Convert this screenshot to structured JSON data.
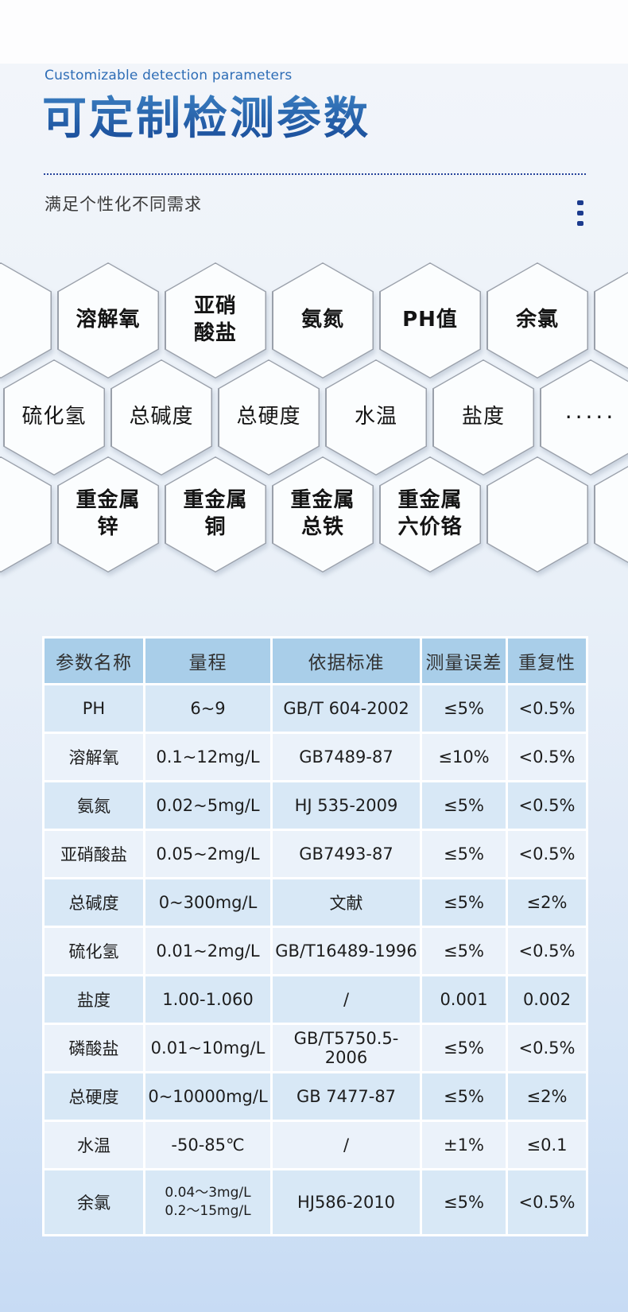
{
  "header": {
    "eyebrow": "Customizable detection parameters",
    "title": "可定制检测参数",
    "subtitle": "满足个性化不同需求",
    "kebab_icon": "vertical-ellipsis-ornament"
  },
  "colors": {
    "accent_blue": "#2a6ab3",
    "title_gradient_start": "#3d82c3",
    "title_gradient_end": "#1b4f9c",
    "dotted_rule_navy": "#26439a",
    "table_header_bg": "#a9cee9",
    "row_tint_blue": "#d8e8f6",
    "row_tint_light": "#ebf2fa",
    "hex_border_gray": "#9aa0aa",
    "hex_fill": "#fbfdfe"
  },
  "hexagons": {
    "rows": [
      {
        "weight": "bold",
        "offset": false,
        "labels": [
          "",
          "溶解氧",
          "亚硝\n酸盐",
          "氨氮",
          "PH值",
          "余氯",
          ""
        ]
      },
      {
        "weight": "regular",
        "offset": true,
        "labels": [
          "硫化氢",
          "总碱度",
          "总硬度",
          "水温",
          "盐度",
          "·····"
        ]
      },
      {
        "weight": "bold",
        "offset": false,
        "labels": [
          "",
          "重金属\n锌",
          "重金属\n铜",
          "重金属\n总铁",
          "重金属\n六价铬",
          "",
          ""
        ]
      }
    ]
  },
  "table": {
    "columns": [
      "参数名称",
      "量程",
      "依据标准",
      "测量误差",
      "重复性"
    ],
    "rows": [
      [
        "PH",
        "6~9",
        "GB/T 604-2002",
        "≤5%",
        "<0.5%"
      ],
      [
        "溶解氧",
        "0.1~12mg/L",
        "GB7489-87",
        "≤10%",
        "<0.5%"
      ],
      [
        "氨氮",
        "0.02~5mg/L",
        "HJ 535-2009",
        "≤5%",
        "<0.5%"
      ],
      [
        "亚硝酸盐",
        "0.05~2mg/L",
        "GB7493-87",
        "≤5%",
        "<0.5%"
      ],
      [
        "总碱度",
        "0~300mg/L",
        "文献",
        "≤5%",
        "≤2%"
      ],
      [
        "硫化氢",
        "0.01~2mg/L",
        "GB/T16489-1996",
        "≤5%",
        "<0.5%"
      ],
      [
        "盐度",
        "1.00-1.060",
        "/",
        "0.001",
        "0.002"
      ],
      [
        "磷酸盐",
        "0.01~10mg/L",
        "GB/T5750.5-2006",
        "≤5%",
        "<0.5%"
      ],
      [
        "总硬度",
        "0~10000mg/L",
        "GB 7477-87",
        "≤5%",
        "≤2%"
      ],
      [
        "水温",
        "-50-85℃",
        "/",
        "±1%",
        "≤0.1"
      ],
      [
        "余氯",
        "0.04～3mg/L\n0.2～15mg/L",
        "HJ586-2010",
        "≤5%",
        "<0.5%"
      ]
    ]
  }
}
